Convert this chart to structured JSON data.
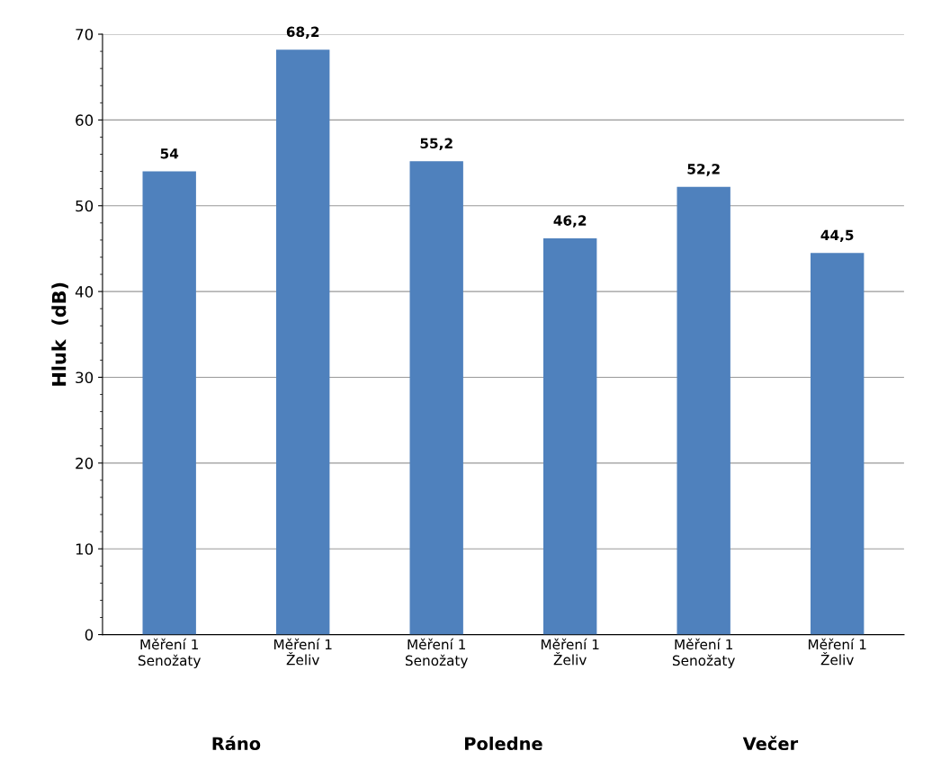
{
  "chart_data": {
    "type": "bar",
    "ylabel": "Hluk  (dB)",
    "categories": [
      "Měření 1\nSenožaty",
      "Měření 1\nŽeliv",
      "Měření 1\nSenožaty",
      "Měření 1\nŽeliv",
      "Měření 1\nSenožaty",
      "Měření 1\nŽeliv"
    ],
    "values": [
      54,
      68.2,
      55.2,
      46.2,
      52.2,
      44.5
    ],
    "value_labels": [
      "54",
      "68,2",
      "55,2",
      "46,2",
      "52,2",
      "44,5"
    ],
    "color": "#4f81bd",
    "annotations": [
      "Ráno",
      "Poledne",
      "Večer"
    ],
    "ylim": [
      0,
      70
    ],
    "yticks": [
      0,
      10,
      20,
      30,
      40,
      50,
      60,
      70
    ],
    "grid": "y",
    "legend": false
  }
}
